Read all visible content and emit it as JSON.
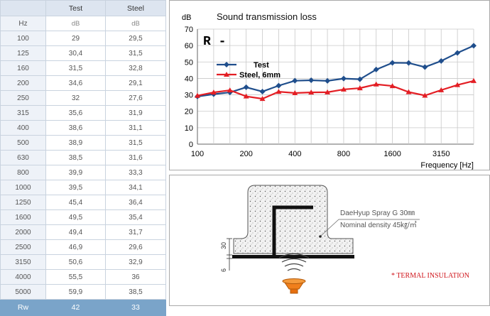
{
  "table": {
    "columns": [
      "",
      "Test",
      "Steel"
    ],
    "unit_row": [
      "Hz",
      "dB",
      "dB"
    ],
    "rows": [
      [
        "100",
        "29",
        "29,5"
      ],
      [
        "125",
        "30,4",
        "31,5"
      ],
      [
        "160",
        "31,5",
        "32,8"
      ],
      [
        "200",
        "34,6",
        "29,1"
      ],
      [
        "250",
        "32",
        "27,6"
      ],
      [
        "315",
        "35,6",
        "31,9"
      ],
      [
        "400",
        "38,6",
        "31,1"
      ],
      [
        "500",
        "38,9",
        "31,5"
      ],
      [
        "630",
        "38,5",
        "31,6"
      ],
      [
        "800",
        "39,9",
        "33,3"
      ],
      [
        "1000",
        "39,5",
        "34,1"
      ],
      [
        "1250",
        "45,4",
        "36,4"
      ],
      [
        "1600",
        "49,5",
        "35,4"
      ],
      [
        "2000",
        "49,4",
        "31,7"
      ],
      [
        "2500",
        "46,9",
        "29,6"
      ],
      [
        "3150",
        "50,6",
        "32,9"
      ],
      [
        "4000",
        "55,5",
        "36"
      ],
      [
        "5000",
        "59,9",
        "38,5"
      ]
    ],
    "footer": [
      "Rw",
      "42",
      "33"
    ]
  },
  "chart_data": {
    "type": "line",
    "title": "Sound transmission loss",
    "annotation": "R -",
    "ylabel": "dB",
    "xlabel": "Frequency [Hz]",
    "ylim": [
      0,
      70
    ],
    "yticks": [
      0,
      10,
      20,
      30,
      40,
      50,
      60,
      70
    ],
    "x": [
      100,
      125,
      160,
      200,
      250,
      315,
      400,
      500,
      630,
      800,
      1000,
      1250,
      1600,
      2000,
      2500,
      3150,
      4000,
      5000
    ],
    "x_tick_labels": [
      "100",
      "200",
      "400",
      "800",
      "1600",
      "3150"
    ],
    "x_tick_indices": [
      0,
      3,
      6,
      9,
      12,
      15
    ],
    "grid": true,
    "legend_position": "left",
    "series": [
      {
        "name": "Test",
        "color": "#1f4e8c",
        "marker": "diamond",
        "values": [
          29,
          30.4,
          31.5,
          34.6,
          32,
          35.6,
          38.6,
          38.9,
          38.5,
          39.9,
          39.5,
          45.4,
          49.5,
          49.4,
          46.9,
          50.6,
          55.5,
          59.9
        ]
      },
      {
        "name": "Steel, 6mm",
        "color": "#e31e24",
        "marker": "triangle",
        "values": [
          29.5,
          31.5,
          32.8,
          29.1,
          27.6,
          31.9,
          31.1,
          31.5,
          31.6,
          33.3,
          34.1,
          36.4,
          35.4,
          31.7,
          29.6,
          32.9,
          36,
          38.5
        ]
      }
    ]
  },
  "diagram": {
    "product_label": "DaeHyup Spray G 30㎜",
    "density_label": "Nominal density 45㎏/㎥",
    "dim_upper": "30",
    "dim_lower": "6",
    "insulation_note": "* TERMAL INSULATION"
  }
}
